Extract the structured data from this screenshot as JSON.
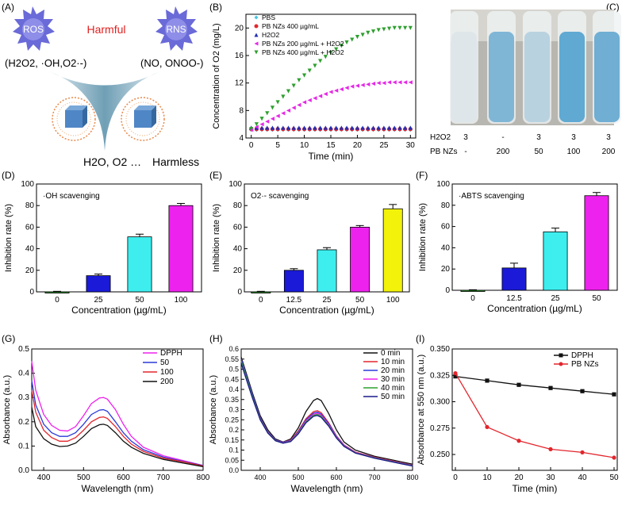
{
  "figure_labels": {
    "A": "(A)",
    "B": "(B)",
    "C": "(C)",
    "D": "(D)",
    "E": "(E)",
    "F": "(F)",
    "G": "(G)",
    "H": "(H)",
    "I": "(I)"
  },
  "panel_a": {
    "ros": "ROS",
    "rns": "RNS",
    "harmful": "Harmful",
    "ros_species": "(H2O2, ·OH,O2·-)",
    "rns_species": "(NO, ONOO-)",
    "products": "H2O, O2 …",
    "harmless": "Harmless",
    "colors": {
      "ros": "#6a6ad8",
      "harmful": "#e02020",
      "funnel": "#8fb7c8",
      "cube": "#4f86c6",
      "fringe": "#e8894a"
    }
  },
  "panel_c": {
    "row_labels": [
      "H2O2",
      "PB NZs"
    ],
    "h2o2": [
      "3",
      "-",
      "3",
      "3",
      "3"
    ],
    "pbnzs": [
      "-",
      "200",
      "50",
      "100",
      "200"
    ],
    "tube_colors": [
      "#dfe6ea",
      "#7fb6d6",
      "#b9d2e0",
      "#5fa9d2",
      "#70aed3"
    ]
  },
  "chart_data": [
    {
      "id": "B",
      "type": "scatter",
      "xlabel": "Time (min)",
      "ylabel": "Concentration of O2 (mg/L)",
      "xlim": [
        -1,
        31
      ],
      "ylim": [
        4,
        22
      ],
      "xticks": [
        0,
        5,
        10,
        15,
        20,
        25,
        30
      ],
      "yticks": [
        4,
        8,
        12,
        16,
        20
      ],
      "x": [
        0,
        1,
        2,
        3,
        4,
        5,
        6,
        7,
        8,
        9,
        10,
        11,
        12,
        13,
        14,
        15,
        16,
        17,
        18,
        19,
        20,
        21,
        22,
        23,
        24,
        25,
        26,
        27,
        28,
        29,
        30
      ],
      "series": [
        {
          "name": "PBS",
          "color": "#45c6e8",
          "marker": "diamond",
          "values": [
            5.2,
            5.2,
            5.2,
            5.2,
            5.2,
            5.2,
            5.2,
            5.2,
            5.2,
            5.2,
            5.2,
            5.2,
            5.2,
            5.2,
            5.2,
            5.2,
            5.2,
            5.2,
            5.2,
            5.2,
            5.2,
            5.2,
            5.2,
            5.2,
            5.2,
            5.2,
            5.2,
            5.2,
            5.2,
            5.2,
            5.2
          ]
        },
        {
          "name": "PB NZs 400 µg/mL",
          "color": "#e3262d",
          "marker": "circle",
          "values": [
            5.3,
            5.3,
            5.3,
            5.3,
            5.3,
            5.3,
            5.3,
            5.3,
            5.3,
            5.3,
            5.3,
            5.3,
            5.3,
            5.3,
            5.3,
            5.3,
            5.3,
            5.3,
            5.3,
            5.3,
            5.3,
            5.3,
            5.3,
            5.3,
            5.3,
            5.3,
            5.3,
            5.3,
            5.3,
            5.3,
            5.3
          ]
        },
        {
          "name": "H2O2",
          "color": "#1f2fb4",
          "marker": "triangle-up",
          "values": [
            5.5,
            5.5,
            5.5,
            5.5,
            5.5,
            5.5,
            5.5,
            5.5,
            5.5,
            5.5,
            5.5,
            5.5,
            5.5,
            5.5,
            5.5,
            5.5,
            5.5,
            5.5,
            5.5,
            5.5,
            5.5,
            5.5,
            5.5,
            5.5,
            5.5,
            5.5,
            5.5,
            5.5,
            5.5,
            5.5,
            5.5
          ]
        },
        {
          "name": "PB NZs 200 µg/mL + H2O2",
          "color": "#e626e6",
          "marker": "triangle-left",
          "values": [
            5.2,
            5.6,
            6.0,
            6.4,
            6.8,
            7.2,
            7.6,
            8.0,
            8.4,
            8.8,
            9.2,
            9.5,
            9.8,
            10.1,
            10.4,
            10.7,
            10.9,
            11.1,
            11.3,
            11.5,
            11.6,
            11.7,
            11.8,
            11.9,
            12.0,
            12.0,
            12.1,
            12.1,
            12.1,
            12.1,
            12.1
          ]
        },
        {
          "name": "PB NZs 400 µg/mL + H2O2",
          "color": "#2ea02e",
          "marker": "triangle-down",
          "values": [
            5.3,
            6.0,
            6.8,
            7.6,
            8.4,
            9.2,
            10.0,
            10.8,
            11.6,
            12.4,
            13.1,
            13.8,
            14.5,
            15.2,
            15.8,
            16.4,
            16.9,
            17.4,
            17.9,
            18.3,
            18.7,
            19.0,
            19.3,
            19.5,
            19.7,
            19.8,
            19.9,
            20.0,
            20.0,
            20.0,
            20.0
          ]
        }
      ]
    },
    {
      "id": "D",
      "type": "bar",
      "title": "·OH scavenging",
      "xlabel": "Concentration (µg/mL)",
      "ylabel": "Inhibition rate (%)",
      "categories": [
        "0",
        "25",
        "50",
        "100"
      ],
      "values": [
        0,
        15,
        51,
        80
      ],
      "errors": [
        0.5,
        1.5,
        2.5,
        2
      ],
      "colors": [
        "#2ea02e",
        "#1a1ad8",
        "#3eeeee",
        "#ee22ee"
      ],
      "ylim": [
        0,
        100
      ],
      "yticks": [
        0,
        20,
        40,
        60,
        80,
        100
      ]
    },
    {
      "id": "E",
      "type": "bar",
      "title": "O2·- scavenging",
      "xlabel": "Concentration (µg/mL)",
      "ylabel": "Inhibition rate (%)",
      "categories": [
        "0",
        "12.5",
        "25",
        "50",
        "100"
      ],
      "values": [
        0,
        20,
        39,
        60,
        77
      ],
      "errors": [
        0.5,
        1.5,
        2,
        1.5,
        4
      ],
      "colors": [
        "#2ea02e",
        "#1a1ad8",
        "#3eeeee",
        "#ee22ee",
        "#f2f20a"
      ],
      "ylim": [
        0,
        100
      ],
      "yticks": [
        0,
        20,
        40,
        60,
        80,
        100
      ]
    },
    {
      "id": "F",
      "type": "bar",
      "title": "·ABTS scavenging",
      "xlabel": "Concentration (µg/mL)",
      "ylabel": "Inhibition rate (%)",
      "categories": [
        "0",
        "12.5",
        "25",
        "50"
      ],
      "values": [
        0,
        21,
        55,
        89
      ],
      "errors": [
        0.5,
        4.5,
        3.5,
        3
      ],
      "colors": [
        "#2ea02e",
        "#1a1ad8",
        "#3eeeee",
        "#ee22ee"
      ],
      "ylim": [
        0,
        100
      ],
      "yticks": [
        0,
        20,
        40,
        60,
        80,
        100
      ]
    },
    {
      "id": "G",
      "type": "line",
      "xlabel": "Wavelength (nm)",
      "ylabel": "Absorbance (a.u.)",
      "xlim": [
        370,
        800
      ],
      "ylim": [
        0,
        0.5
      ],
      "xticks": [
        400,
        500,
        600,
        700,
        800
      ],
      "yticks": [
        0.0,
        0.1,
        0.2,
        0.3,
        0.4,
        0.5
      ],
      "x": [
        370,
        380,
        400,
        420,
        440,
        460,
        480,
        500,
        520,
        540,
        550,
        560,
        580,
        600,
        620,
        650,
        700,
        750,
        800
      ],
      "series": [
        {
          "name": "DPPH",
          "color": "#ee22ee",
          "values": [
            0.45,
            0.33,
            0.23,
            0.185,
            0.165,
            0.162,
            0.18,
            0.225,
            0.275,
            0.298,
            0.3,
            0.293,
            0.25,
            0.19,
            0.14,
            0.095,
            0.06,
            0.04,
            0.02
          ]
        },
        {
          "name": "50",
          "color": "#2a3ad8",
          "values": [
            0.37,
            0.27,
            0.19,
            0.155,
            0.14,
            0.14,
            0.155,
            0.19,
            0.23,
            0.248,
            0.25,
            0.243,
            0.2,
            0.155,
            0.12,
            0.085,
            0.055,
            0.037,
            0.02
          ]
        },
        {
          "name": "100",
          "color": "#e3262d",
          "values": [
            0.33,
            0.24,
            0.165,
            0.135,
            0.12,
            0.12,
            0.135,
            0.165,
            0.2,
            0.218,
            0.22,
            0.214,
            0.18,
            0.14,
            0.108,
            0.078,
            0.05,
            0.035,
            0.018
          ]
        },
        {
          "name": "200",
          "color": "#111111",
          "values": [
            0.26,
            0.18,
            0.13,
            0.108,
            0.098,
            0.1,
            0.112,
            0.14,
            0.172,
            0.188,
            0.19,
            0.185,
            0.155,
            0.12,
            0.095,
            0.07,
            0.045,
            0.03,
            0.015
          ]
        }
      ]
    },
    {
      "id": "H",
      "type": "line",
      "xlabel": "Wavelength (nm)",
      "ylabel": "Absorbance (a.u.)",
      "xlim": [
        350,
        800
      ],
      "ylim": [
        0,
        0.6
      ],
      "xticks": [
        400,
        500,
        600,
        700,
        800
      ],
      "yticks": [
        0.0,
        0.05,
        0.1,
        0.15,
        0.2,
        0.25,
        0.3,
        0.35,
        0.4,
        0.45,
        0.5,
        0.55,
        0.6
      ],
      "x": [
        350,
        360,
        380,
        400,
        420,
        440,
        460,
        480,
        500,
        520,
        540,
        550,
        560,
        580,
        600,
        620,
        650,
        700,
        750,
        800
      ],
      "series": [
        {
          "name": "0 min",
          "color": "#111111",
          "values": [
            0.56,
            0.5,
            0.38,
            0.27,
            0.2,
            0.155,
            0.14,
            0.155,
            0.21,
            0.29,
            0.345,
            0.355,
            0.345,
            0.28,
            0.2,
            0.14,
            0.1,
            0.07,
            0.05,
            0.03
          ]
        },
        {
          "name": "10 min",
          "color": "#e3262d",
          "values": [
            0.55,
            0.49,
            0.37,
            0.26,
            0.19,
            0.15,
            0.138,
            0.15,
            0.195,
            0.255,
            0.29,
            0.295,
            0.285,
            0.235,
            0.17,
            0.125,
            0.09,
            0.065,
            0.045,
            0.025
          ]
        },
        {
          "name": "20 min",
          "color": "#2a3ad8",
          "values": [
            0.55,
            0.49,
            0.37,
            0.26,
            0.19,
            0.15,
            0.138,
            0.148,
            0.19,
            0.25,
            0.283,
            0.288,
            0.278,
            0.23,
            0.168,
            0.123,
            0.088,
            0.063,
            0.043,
            0.024
          ]
        },
        {
          "name": "30 min",
          "color": "#ee22ee",
          "values": [
            0.54,
            0.48,
            0.36,
            0.255,
            0.188,
            0.148,
            0.136,
            0.146,
            0.186,
            0.245,
            0.277,
            0.282,
            0.272,
            0.225,
            0.165,
            0.121,
            0.087,
            0.062,
            0.042,
            0.023
          ]
        },
        {
          "name": "40 min",
          "color": "#2ea02e",
          "values": [
            0.54,
            0.48,
            0.36,
            0.253,
            0.186,
            0.147,
            0.135,
            0.144,
            0.183,
            0.24,
            0.272,
            0.276,
            0.267,
            0.221,
            0.162,
            0.119,
            0.086,
            0.061,
            0.041,
            0.022
          ]
        },
        {
          "name": "50 min",
          "color": "#1a1a8a",
          "values": [
            0.53,
            0.47,
            0.355,
            0.25,
            0.184,
            0.146,
            0.134,
            0.142,
            0.18,
            0.235,
            0.267,
            0.271,
            0.262,
            0.218,
            0.16,
            0.118,
            0.085,
            0.06,
            0.04,
            0.021
          ]
        }
      ]
    },
    {
      "id": "I",
      "type": "line",
      "xlabel": "Time (min)",
      "ylabel": "Absorbance at 550 nm (a.u.)",
      "xlim": [
        -1,
        51
      ],
      "ylim": [
        0.235,
        0.35
      ],
      "xticks": [
        0,
        10,
        20,
        30,
        40,
        50
      ],
      "yticks": [
        0.25,
        0.275,
        0.3,
        0.325,
        0.35
      ],
      "x": [
        0,
        10,
        20,
        30,
        40,
        50
      ],
      "series": [
        {
          "name": "DPPH",
          "color": "#111111",
          "marker": "square",
          "values": [
            0.324,
            0.32,
            0.316,
            0.313,
            0.31,
            0.307
          ]
        },
        {
          "name": "PB NZs",
          "color": "#e3262d",
          "marker": "circle",
          "values": [
            0.327,
            0.276,
            0.263,
            0.255,
            0.252,
            0.247
          ]
        }
      ]
    }
  ]
}
